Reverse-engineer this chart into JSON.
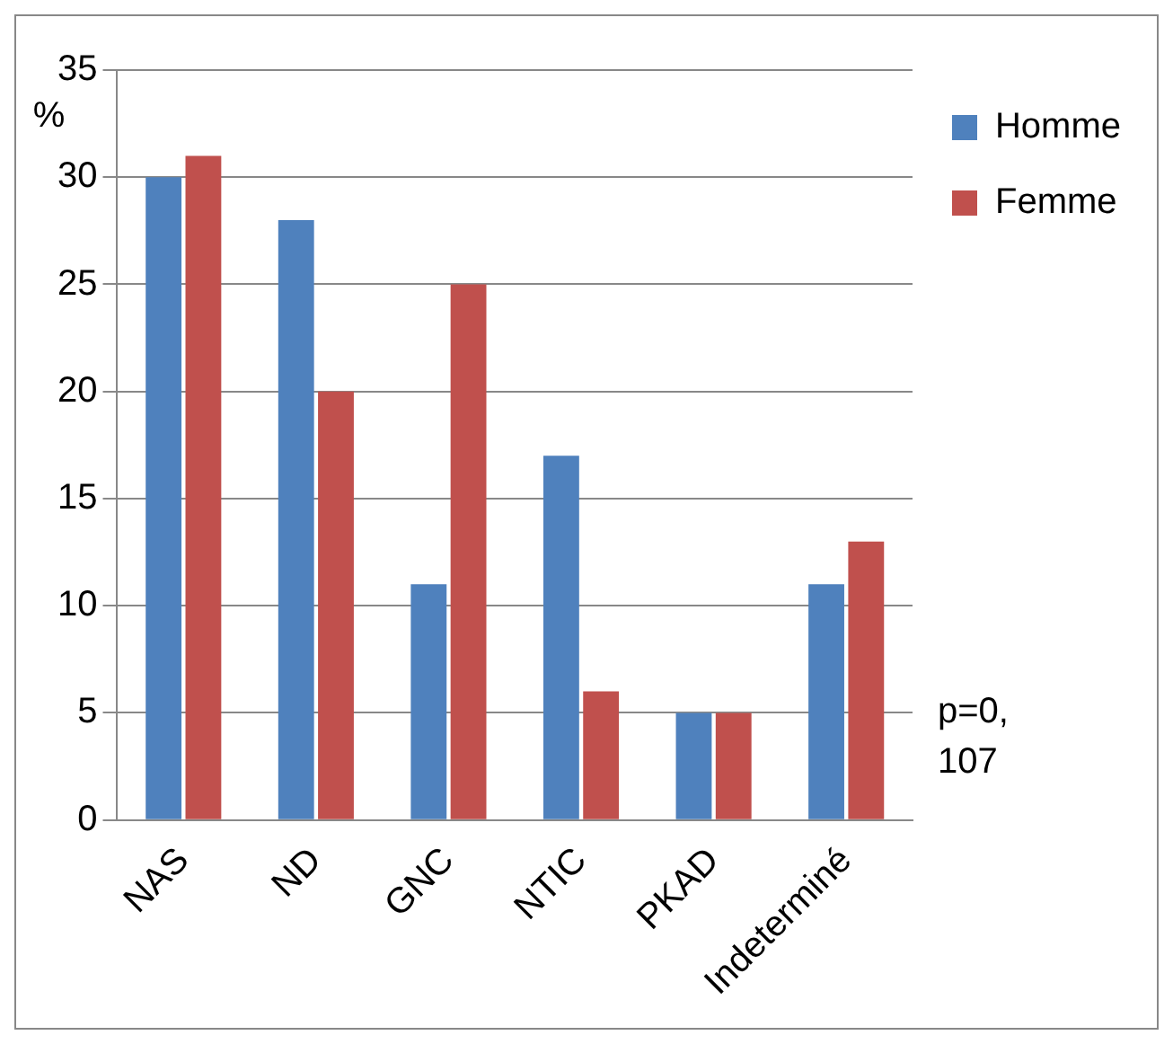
{
  "chart_data": {
    "type": "bar",
    "ylabel": "%",
    "categories": [
      "NAS",
      "ND",
      "GNC",
      "NTIC",
      "PKAD",
      "Indeterminé"
    ],
    "series": [
      {
        "name": "Homme",
        "color": "#4f81bd",
        "values": [
          30,
          28,
          11,
          17,
          5,
          11
        ]
      },
      {
        "name": "Femme",
        "color": "#c0504d",
        "values": [
          31,
          20,
          25,
          6,
          5,
          13
        ]
      }
    ],
    "ylim": [
      0,
      35
    ],
    "yticks": [
      0,
      5,
      10,
      15,
      20,
      25,
      30,
      35
    ],
    "grid": "y",
    "legend": "right",
    "annotations": [
      "p=0, 107"
    ]
  }
}
